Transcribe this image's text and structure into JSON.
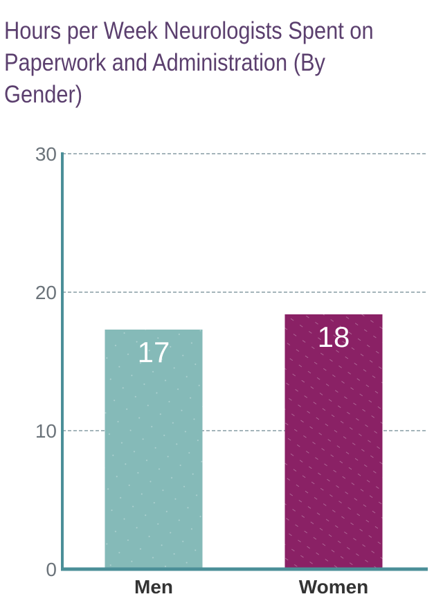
{
  "chart_data": {
    "type": "bar",
    "title": "Hours per Week Neurologists Spent on Paperwork and Administration (By Gender)",
    "xlabel": "",
    "ylabel": "",
    "categories": [
      "Men",
      "Women"
    ],
    "values": [
      17.3,
      18.4
    ],
    "data_labels": [
      "17",
      "18"
    ],
    "ylim": [
      0,
      30
    ],
    "yticks": [
      0,
      10,
      20,
      30
    ],
    "ytick_labels": [
      "0",
      "10",
      "20",
      "30"
    ],
    "grid": true,
    "legend": "none",
    "colors": {
      "bars": [
        "#85bab8",
        "#8a2165"
      ],
      "axis": "#4b8f98",
      "grid": "#6d8891",
      "title": "#5b3f6e"
    }
  }
}
